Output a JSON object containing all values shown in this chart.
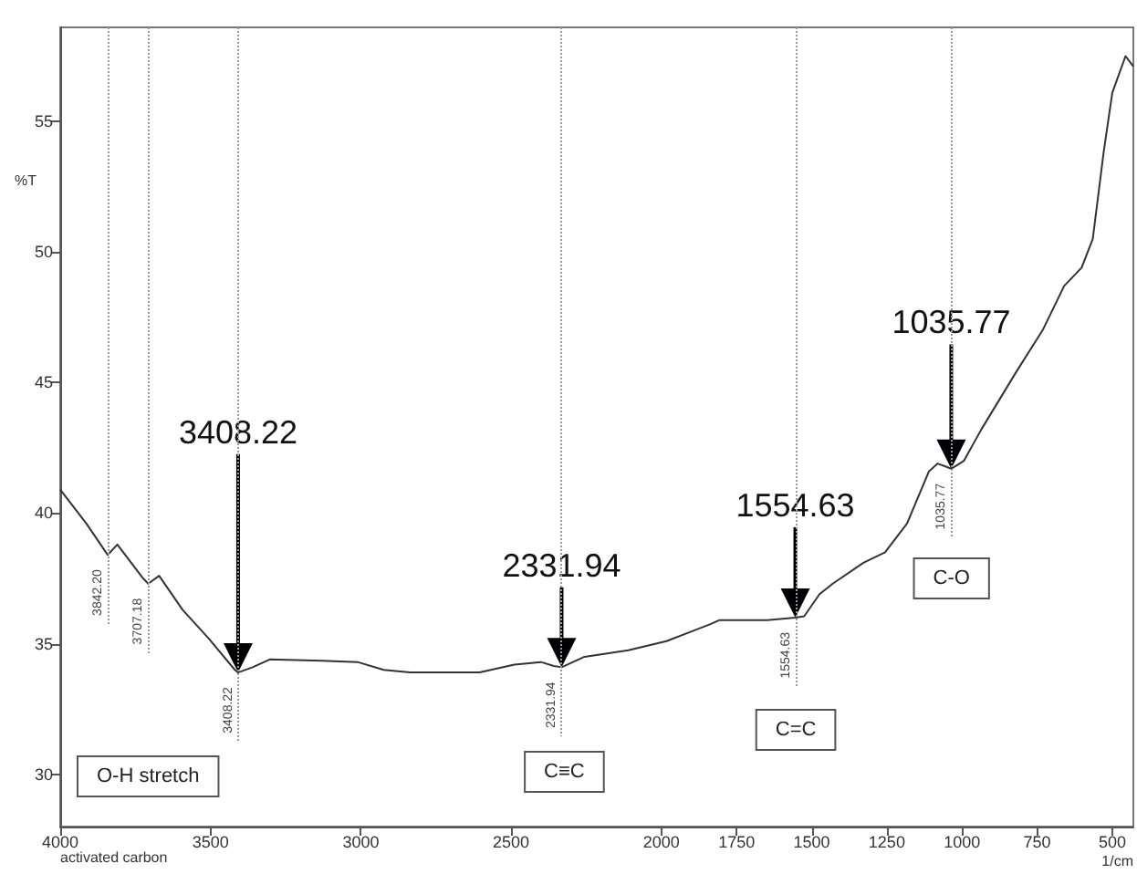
{
  "chart_data": {
    "type": "line",
    "ylabel": "%T",
    "xlabel": "1/cm",
    "color": "#333333",
    "x": [
      4000,
      3913,
      3848,
      3842.2,
      3810,
      3724,
      3707.18,
      3671,
      3593,
      3506,
      3419,
      3408.22,
      3360,
      3303,
      3128,
      3011,
      2924,
      2837,
      2605,
      2489,
      2401,
      2358,
      2331.94,
      2256,
      2110,
      1983,
      1837,
      1808,
      1750,
      1648,
      1554.63,
      1525,
      1474,
      1430,
      1328,
      1256,
      1183,
      1110,
      1081,
      1035.77,
      994,
      936,
      820,
      732,
      660,
      602,
      565,
      529,
      500,
      456,
      430
    ],
    "values": [
      40.9,
      39.6,
      38.5,
      38.4,
      38.8,
      37.5,
      37.3,
      37.6,
      36.3,
      35.2,
      34.0,
      33.9,
      34.1,
      34.4,
      34.35,
      34.3,
      34.0,
      33.9,
      33.9,
      34.2,
      34.3,
      34.15,
      34.1,
      34.5,
      34.75,
      35.1,
      35.75,
      35.9,
      35.9,
      35.9,
      36.0,
      36.05,
      36.9,
      37.3,
      38.1,
      38.5,
      39.6,
      41.6,
      41.9,
      41.7,
      42.0,
      43.2,
      45.4,
      47.0,
      48.7,
      49.4,
      50.5,
      53.8,
      56.1,
      57.5,
      57.1
    ],
    "xlim": [
      4000,
      430
    ],
    "ylim": [
      28,
      58.6
    ],
    "xticks": [
      4000,
      3500,
      3000,
      2500,
      2000,
      1750,
      1500,
      1250,
      1000,
      750,
      500
    ],
    "yticks": [
      30,
      35,
      40,
      45,
      50,
      55
    ],
    "ref_lines": [
      {
        "axis": "x",
        "value": 3842.2,
        "label": "3842.20",
        "color": "#999999",
        "line_style": "dotted"
      },
      {
        "axis": "x",
        "value": 3707.18,
        "label": "3707.18",
        "color": "#999999",
        "line_style": "dotted"
      },
      {
        "axis": "x",
        "value": 3408.22,
        "label": "3408.22",
        "color": "#999999",
        "line_style": "dotted"
      },
      {
        "axis": "x",
        "value": 2331.94,
        "label": "2331.94",
        "color": "#999999",
        "line_style": "dotted"
      },
      {
        "axis": "x",
        "value": 1554.63,
        "label": "1554.63",
        "color": "#999999",
        "line_style": "dotted"
      },
      {
        "axis": "x",
        "value": 1035.77,
        "label": "1035.77",
        "color": "#999999",
        "line_style": "dotted"
      }
    ],
    "annotations": [
      {
        "text": "3408.22",
        "x": 3408.22,
        "y": 43.1
      },
      {
        "text": "2331.94",
        "x": 2331.94,
        "y": 38.0
      },
      {
        "text": "1554.63",
        "x": 1554.63,
        "y": 40.3
      },
      {
        "text": "1035.77",
        "x": 1035.77,
        "y": 47.3
      },
      "O-H stretch",
      {
        "text": "C≡C",
        "x": 2323,
        "y": 30.1
      },
      {
        "text": "C=C",
        "x": 1553,
        "y": 31.7
      },
      {
        "text": "C-O",
        "x": 1035,
        "y": 37.5
      },
      "activated carbon"
    ]
  }
}
